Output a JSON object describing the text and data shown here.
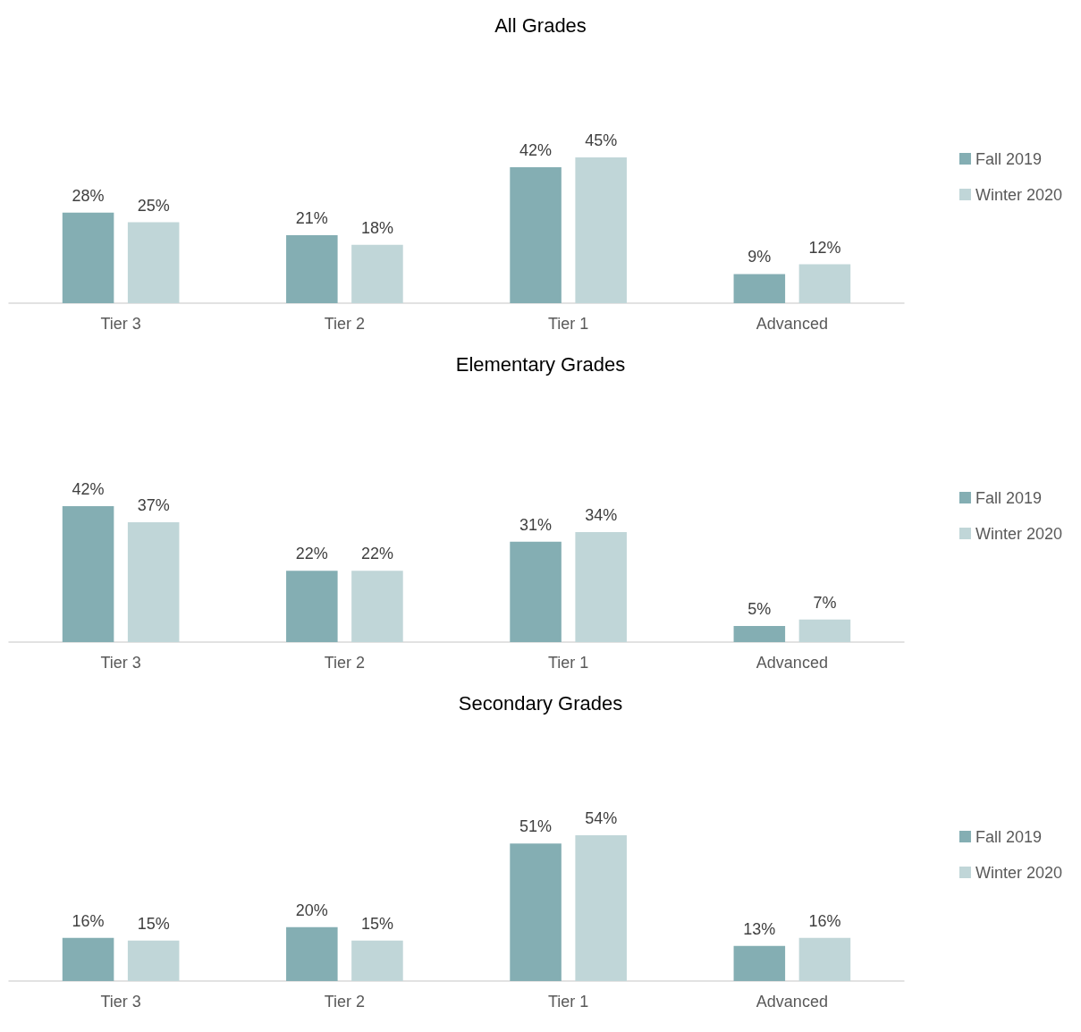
{
  "chart_data": [
    {
      "type": "bar",
      "title": "All Grades",
      "categories": [
        "Tier 3",
        "Tier 2",
        "Tier 1",
        "Advanced"
      ],
      "series": [
        {
          "name": "Fall 2019",
          "color": "#84aeb3",
          "values": [
            28,
            21,
            42,
            9
          ],
          "value_labels": [
            "28%",
            "21%",
            "42%",
            "9%"
          ]
        },
        {
          "name": "Winter 2020",
          "color": "#c0d6d8",
          "values": [
            25,
            18,
            45,
            12
          ],
          "value_labels": [
            "25%",
            "18%",
            "45%",
            "12%"
          ]
        }
      ],
      "legend": "right",
      "tick_labels": "x"
    },
    {
      "type": "bar",
      "title": "Elementary Grades",
      "categories": [
        "Tier 3",
        "Tier 2",
        "Tier 1",
        "Advanced"
      ],
      "series": [
        {
          "name": "Fall 2019",
          "color": "#84aeb3",
          "values": [
            42,
            22,
            31,
            5
          ],
          "value_labels": [
            "42%",
            "22%",
            "31%",
            "5%"
          ]
        },
        {
          "name": "Winter 2020",
          "color": "#c0d6d8",
          "values": [
            37,
            22,
            34,
            7
          ],
          "value_labels": [
            "37%",
            "22%",
            "34%",
            "7%"
          ]
        }
      ],
      "legend": "right",
      "tick_labels": "x"
    },
    {
      "type": "bar",
      "title": "Secondary Grades",
      "categories": [
        "Tier 3",
        "Tier 2",
        "Tier 1",
        "Advanced"
      ],
      "series": [
        {
          "name": "Fall 2019",
          "color": "#84aeb3",
          "values": [
            16,
            20,
            51,
            13
          ],
          "value_labels": [
            "16%",
            "20%",
            "51%",
            "13%"
          ]
        },
        {
          "name": "Winter 2020",
          "color": "#c0d6d8",
          "values": [
            15,
            15,
            54,
            16
          ],
          "value_labels": [
            "15%",
            "15%",
            "54%",
            "16%"
          ]
        }
      ],
      "legend": "right",
      "tick_labels": "x"
    }
  ]
}
